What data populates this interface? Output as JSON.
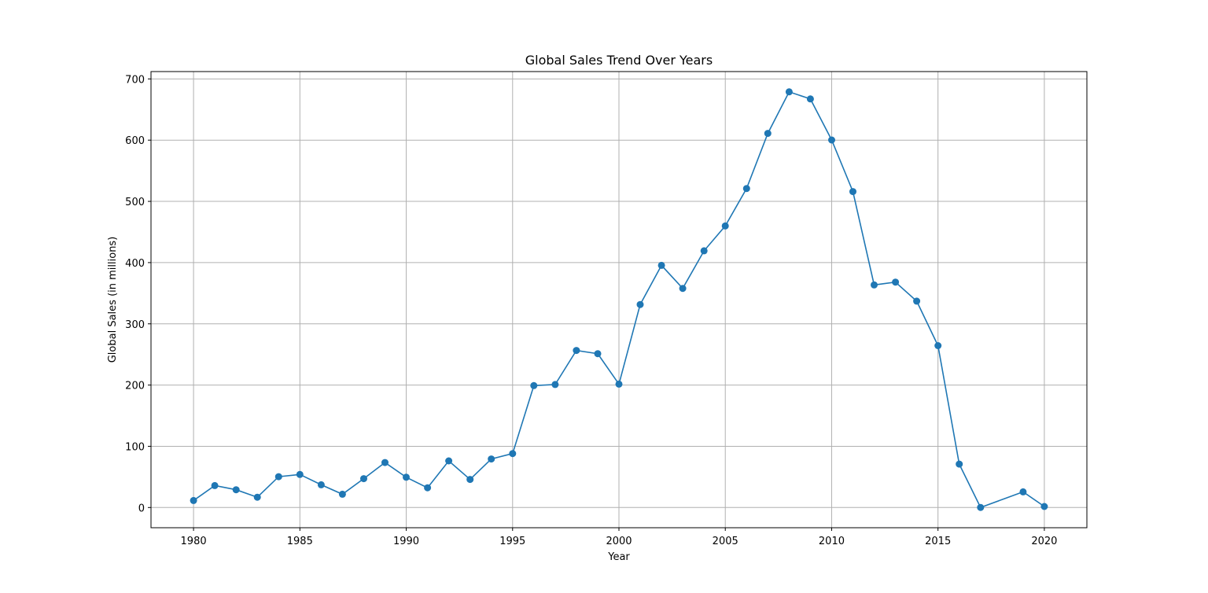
{
  "chart_data": {
    "type": "line",
    "title": "Global Sales Trend Over Years",
    "xlabel": "Year",
    "ylabel": "Global Sales (in millions)",
    "xlim": [
      1978,
      2022
    ],
    "ylim": [
      -33,
      712
    ],
    "xticks": [
      1980,
      1985,
      1990,
      1995,
      2000,
      2005,
      2010,
      2015,
      2020
    ],
    "yticks": [
      0,
      100,
      200,
      300,
      400,
      500,
      600,
      700
    ],
    "grid": true,
    "marker": "circle",
    "color": "#1f77b4",
    "x": [
      1980,
      1981,
      1982,
      1983,
      1984,
      1985,
      1986,
      1987,
      1988,
      1989,
      1990,
      1991,
      1992,
      1993,
      1994,
      1995,
      1996,
      1997,
      1998,
      1999,
      2000,
      2001,
      2002,
      2003,
      2004,
      2005,
      2006,
      2007,
      2008,
      2009,
      2010,
      2011,
      2012,
      2013,
      2014,
      2015,
      2016,
      2017,
      2019,
      2020
    ],
    "y": [
      11.4,
      35.8,
      29.0,
      16.8,
      50.4,
      53.9,
      37.1,
      21.7,
      47.2,
      73.5,
      49.4,
      32.2,
      76.2,
      45.9,
      79.2,
      88.1,
      199.1,
      200.9,
      256.5,
      251.3,
      201.6,
      331.5,
      395.5,
      357.9,
      419.3,
      459.9,
      521.0,
      611.1,
      678.9,
      667.3,
      600.3,
      516.0,
      363.5,
      368.1,
      337.0,
      264.4,
      70.9,
      0.1,
      25.6,
      1.7
    ]
  }
}
